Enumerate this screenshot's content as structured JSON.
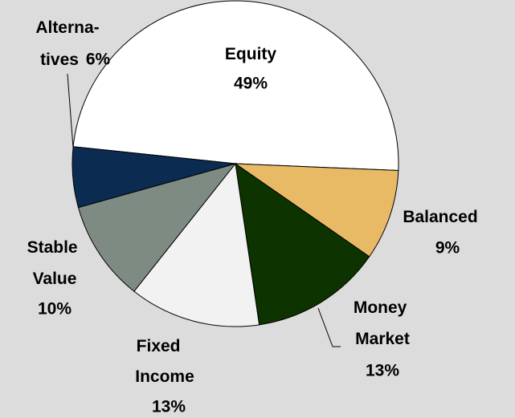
{
  "chart_data": {
    "type": "pie",
    "categories": [
      "Equity",
      "Balanced",
      "Money Market",
      "Fixed Income",
      "Stable Value",
      "Alterna-tives"
    ],
    "values": [
      49,
      9,
      13,
      13,
      10,
      6
    ],
    "value_labels": [
      "49%",
      "9%",
      "13%",
      "13%",
      "10%",
      "6%"
    ],
    "colors": [
      "#ffffff",
      "#e9ba66",
      "#0d3300",
      "#f2f2f2",
      "#7e8b83",
      "#0b2b50"
    ]
  }
}
